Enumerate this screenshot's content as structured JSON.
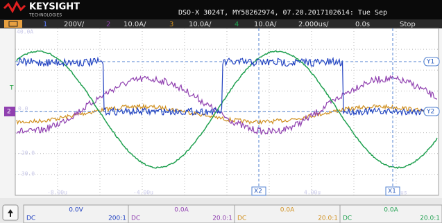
{
  "header": {
    "brand": "KEYSIGHT",
    "brand_sub": "TECHNOLOGIES",
    "info": "DSO-X 3024T, MY58262974, 07.20.2017102614: Tue Sep"
  },
  "channel_bar": {
    "channels": [
      {
        "number": "1",
        "scale": "200V/"
      },
      {
        "number": "2",
        "scale": "10.0A/"
      },
      {
        "number": "3",
        "scale": "10.0A/"
      },
      {
        "number": "4",
        "scale": "10.0A/"
      }
    ],
    "timebase": "2.000us/",
    "delay": "0.0s",
    "status": "Stop"
  },
  "screen": {
    "y_labels": [
      "40.0A",
      "0.0",
      "-20.0",
      "-30.0"
    ],
    "markers": {
      "trigger": "T",
      "channel_2": "2",
      "y1": "Y1",
      "y2": "Y2",
      "x1": "X1",
      "x2": "X2"
    },
    "x_labels": [
      "-8.00u",
      "-4.00u",
      "4.00u",
      "us"
    ]
  },
  "channel_panel": [
    {
      "offset": "0.0V",
      "coupling": "DC",
      "probe": "200:1"
    },
    {
      "offset": "0.0A",
      "coupling": "DC",
      "probe": "20.0:1"
    },
    {
      "offset": "0.0A",
      "coupling": "DC",
      "probe": "20.0:1"
    },
    {
      "offset": "0.0A",
      "coupling": "DC",
      "probe": "20.0:1"
    }
  ]
}
